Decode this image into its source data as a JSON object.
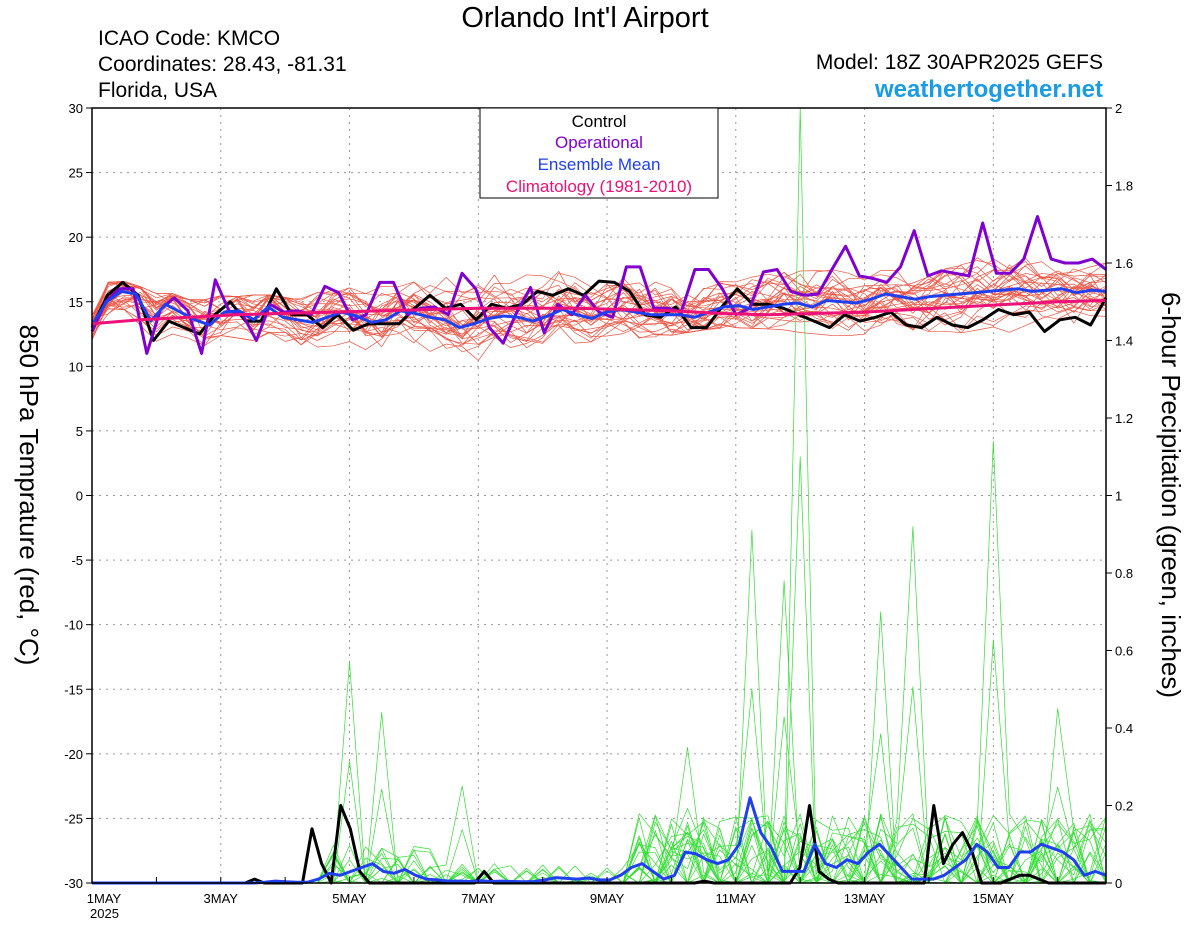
{
  "header": {
    "title": "Orlando Int'l Airport",
    "icao": "ICAO Code: KMCO",
    "coords": "Coordinates: 28.43, -81.31",
    "region": "Florida, USA",
    "model": "Model: 18Z 30APR2025 GEFS",
    "site": "weathertogether.net"
  },
  "colors": {
    "members_temp": "#ee5544",
    "members_precip": "#33dd33",
    "control": "#000000",
    "operational": "#8000d0",
    "mean": "#2040f0",
    "climatology": "#ee1177",
    "site": "#1a9be6"
  },
  "chart_data": {
    "type": "line",
    "x_axis": {
      "start": "2025-05-01T00Z",
      "step_hours": 6,
      "end_hour": 378,
      "tick_labels": [
        "1MAY",
        "3MAY",
        "5MAY",
        "7MAY",
        "9MAY",
        "11MAY",
        "13MAY",
        "15MAY"
      ],
      "tick_hours": [
        0,
        48,
        96,
        144,
        192,
        240,
        288,
        336
      ],
      "year_label": "2025"
    },
    "y_left": {
      "label": "850 hPa Temprature (red, °C)",
      "range": [
        -30,
        30
      ],
      "ticks": [
        30,
        25,
        20,
        15,
        10,
        5,
        0,
        -5,
        -10,
        -15,
        -20,
        -25,
        -30
      ]
    },
    "y_right": {
      "label": "6-hour Precipitation (green, inches)",
      "range": [
        0,
        2
      ],
      "ticks": [
        "2",
        "1.8",
        "1.6",
        "1.4",
        "1.2",
        "1",
        "0.8",
        "0.6",
        "0.4",
        "0.2",
        "0"
      ]
    },
    "grid": true,
    "legend": {
      "placement": "top-center",
      "entries": [
        "Control",
        "Operational",
        "Ensemble Mean",
        "Climatology (1981-2010)"
      ]
    },
    "temperature": {
      "control": [
        13,
        15.5,
        16.5,
        15.5,
        12,
        13.5,
        13,
        12.5,
        14,
        15,
        13.5,
        13.5,
        16,
        14,
        14,
        13,
        14,
        12.8,
        13.3,
        13.3,
        13.3,
        14.5,
        15.5,
        14.5,
        14.8,
        13.6,
        14.8,
        14.5,
        14.8,
        15.8,
        15.5,
        16,
        15.5,
        16.6,
        16.5,
        15.8,
        14,
        13.8,
        14.6,
        13,
        13,
        14.6,
        16,
        14.8,
        14.8,
        14.5,
        14,
        13.5,
        13,
        14,
        13.5,
        13.8,
        14.2,
        13.2,
        13,
        13.8,
        13.2,
        13,
        13.6,
        14.4,
        14,
        14.2,
        12.7,
        13.6,
        13.8,
        13.2,
        15.3
      ],
      "operational": [
        12.7,
        15,
        16,
        16,
        11,
        14.4,
        15.3,
        14.3,
        11,
        16.7,
        14.3,
        14,
        12,
        14.8,
        14.2,
        14.3,
        14,
        16.2,
        15.7,
        13.6,
        14,
        16.5,
        16.5,
        14,
        14.5,
        14.6,
        14,
        17.2,
        16,
        13,
        11.8,
        14.2,
        16.1,
        12.6,
        14.8,
        14,
        15.5,
        14.2,
        13.8,
        17.7,
        17.7,
        14.5,
        14.5,
        14.2,
        17.5,
        17.5,
        16,
        14,
        14.5,
        17.3,
        17.5,
        15.8,
        15.5,
        15.6,
        17.5,
        19.3,
        17,
        16.8,
        16.5,
        17.7,
        20.5,
        17,
        17.4,
        17.2,
        17,
        21.1,
        17.2,
        17.2,
        18.3,
        21.6,
        18.3,
        18,
        18,
        18.3,
        17.5
      ],
      "mean": [
        13.2,
        15,
        15.8,
        15.6,
        13.5,
        14.8,
        14.2,
        13.6,
        13.2,
        14.2,
        14.3,
        13.6,
        14.6,
        13.8,
        13.6,
        13.4,
        13.8,
        14.2,
        13.9,
        13.4,
        13.6,
        14.3,
        14.1,
        13.8,
        13.6,
        13,
        13.3,
        13.7,
        13.9,
        13.8,
        13.5,
        13.9,
        14.4,
        14,
        13.7,
        14.2,
        14.4,
        14.2,
        14,
        14,
        14,
        13.8,
        14.2,
        14.6,
        14.7,
        14.4,
        14.6,
        14.8,
        14.9,
        14.6,
        15.1,
        15,
        14.9,
        15.2,
        15.6,
        15.4,
        15.2,
        15.4,
        15.5,
        15.6,
        15.7,
        15.8,
        15.9,
        16,
        15.8,
        15.9,
        16,
        15.7,
        15.9,
        15.8
      ],
      "climatology": [
        13.3,
        13.6,
        13.8,
        14,
        14.1,
        14.2,
        14.3,
        14.4,
        14.5,
        14.5,
        14.5,
        14.4,
        14.3,
        14.1,
        14,
        14.1,
        14.2,
        14.4,
        14.6,
        14.8,
        15,
        15.1
      ],
      "members_band_low": [
        12,
        14,
        14.5,
        14,
        11.5,
        12.5,
        12.5,
        12,
        11.5,
        12.5,
        12.2,
        12,
        12,
        12,
        11.8,
        11.5,
        11.5,
        11,
        11,
        10.5,
        10.3,
        10.5,
        10.8,
        10.8,
        10.5,
        10,
        9.8,
        9.6,
        9.8,
        10.2,
        10.6,
        11,
        11.2,
        11.5,
        11.8,
        12,
        12.1,
        12.1,
        12.2,
        12.3,
        12.4,
        12.6,
        12.8,
        12.9,
        13,
        13,
        12.9,
        12.9,
        12.8,
        12.6,
        12.5,
        12.4,
        12.3,
        12.3,
        12.4,
        12.5,
        12.5,
        12.6,
        12.7,
        12.7,
        12.6,
        12.5,
        12.4,
        12.3,
        12.2,
        12.1,
        12,
        12,
        11.8,
        11.7,
        11.5
      ],
      "members_band_high": [
        14,
        16.5,
        16.6,
        16.5,
        15.5,
        15.8,
        15.5,
        15,
        15.2,
        15.5,
        15.4,
        15.5,
        15.6,
        15.3,
        15.4,
        15.6,
        15.8,
        16,
        16.1,
        16.2,
        16.2,
        16.3,
        16.5,
        16.6,
        16.8,
        17,
        17.1,
        17.2,
        17.4,
        17.5,
        17.6,
        17.7,
        17.8,
        17.9,
        18,
        18,
        18,
        17.9,
        17.7,
        17.5,
        17.3,
        17,
        16.8,
        16.6,
        16.6,
        16.8,
        17,
        17.2,
        17.3,
        17.4,
        17.6,
        17.8,
        18,
        18.1,
        18.2,
        18.2,
        18.3,
        18.4,
        18.5,
        18.5,
        18.5,
        18.6,
        18.5,
        18.5,
        18.4,
        18.4,
        18.3,
        18.2,
        18.1,
        18,
        18
      ]
    },
    "precipitation": {
      "control": [
        0,
        0,
        0,
        0,
        0,
        0,
        0,
        0,
        0,
        0,
        0,
        0,
        0,
        0,
        0,
        0,
        0,
        0.01,
        0,
        0,
        0,
        0,
        0,
        0.14,
        0.05,
        0,
        0.2,
        0.14,
        0.03,
        0,
        0,
        0,
        0,
        0,
        0,
        0,
        0,
        0,
        0,
        0,
        0,
        0.03,
        0,
        0,
        0,
        0,
        0,
        0,
        0,
        0,
        0,
        0,
        0,
        0,
        0,
        0,
        0,
        0,
        0,
        0,
        0,
        0,
        0,
        0,
        0.005,
        0,
        0,
        0,
        0,
        0,
        0,
        0,
        0,
        0,
        0.04,
        0.2,
        0.03,
        0.01,
        0,
        0,
        0,
        0,
        0,
        0,
        0,
        0,
        0,
        0,
        0.2,
        0.05,
        0.1,
        0.13,
        0.08,
        0,
        0,
        0,
        0.01,
        0.02,
        0.02,
        0.01,
        0,
        0,
        0,
        0,
        0,
        0,
        0
      ],
      "mean": [
        0,
        0,
        0,
        0,
        0,
        0,
        0,
        0,
        0,
        0,
        0,
        0,
        0,
        0,
        0,
        0,
        0.002,
        0.005,
        0.003,
        0.002,
        0.002,
        0.01,
        0.025,
        0.02,
        0.03,
        0.04,
        0.05,
        0.03,
        0.025,
        0.035,
        0.02,
        0.01,
        0.008,
        0.005,
        0.005,
        0.004,
        0.006,
        0.004,
        0.005,
        0.004,
        0.003,
        0.004,
        0.008,
        0.014,
        0.012,
        0.01,
        0.013,
        0.008,
        0.008,
        0.02,
        0.04,
        0.05,
        0.03,
        0.01,
        0.02,
        0.08,
        0.075,
        0.06,
        0.05,
        0.06,
        0.1,
        0.22,
        0.13,
        0.09,
        0.03,
        0.03,
        0.03,
        0.1,
        0.05,
        0.04,
        0.06,
        0.05,
        0.08,
        0.1,
        0.07,
        0.04,
        0.01,
        0.01,
        0.01,
        0.02,
        0.04,
        0.06,
        0.1,
        0.08,
        0.04,
        0.04,
        0.08,
        0.08,
        0.1,
        0.09,
        0.08,
        0.06,
        0.02,
        0.03,
        0.02
      ],
      "members_peaks": [
        {
          "hour": 96,
          "value": 0.57
        },
        {
          "hour": 108,
          "value": 0.44
        },
        {
          "hour": 138,
          "value": 0.25
        },
        {
          "hour": 222,
          "value": 0.35
        },
        {
          "hour": 243,
          "value": 0.91
        },
        {
          "hour": 255,
          "value": 0.78
        },
        {
          "hour": 264,
          "value": 2
        },
        {
          "hour": 291,
          "value": 0.7
        },
        {
          "hour": 306,
          "value": 0.92
        },
        {
          "hour": 336,
          "value": 1.14
        },
        {
          "hour": 360,
          "value": 0.45
        }
      ]
    }
  }
}
